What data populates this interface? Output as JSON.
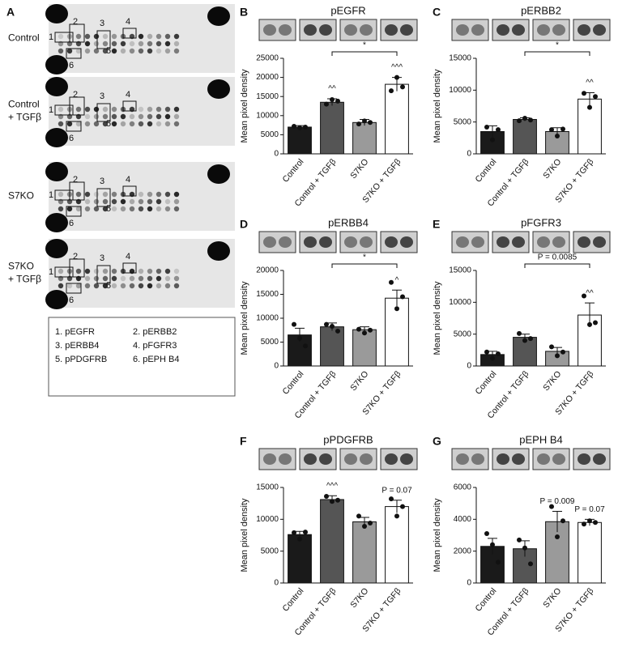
{
  "panel_a": {
    "letter": "A",
    "rows": [
      {
        "label_lines": [
          "Control"
        ]
      },
      {
        "label_lines": [
          "Control",
          "+ TGFβ"
        ]
      },
      {
        "label_lines": [
          "S7KO"
        ]
      },
      {
        "label_lines": [
          "S7KO",
          "+ TGFβ"
        ]
      }
    ],
    "spot_numbers": [
      "1",
      "2",
      "3",
      "4",
      "5",
      "6"
    ],
    "legend": [
      "1. pEGFR",
      "2. pERBB2",
      "3. pERBB4",
      "4. pFGFR3",
      "5. pPDGFRB",
      "6. pEPH B4"
    ]
  },
  "chart_data": [
    {
      "type": "bar",
      "letter": "B",
      "title": "pEGFR",
      "y_label": "Mean pixel density",
      "categories": [
        "Control",
        "Control + TGFβ",
        "S7KO",
        "S7KO + TGFβ"
      ],
      "colors": [
        "#1a1a1a",
        "#555555",
        "#9a9a9a",
        "#ffffff"
      ],
      "values": [
        7000,
        13500,
        8200,
        18200
      ],
      "errors": [
        400,
        900,
        800,
        1800
      ],
      "points": [
        [
          7200,
          6800,
          7000
        ],
        [
          13000,
          14200,
          13800
        ],
        [
          7800,
          8600,
          8200
        ],
        [
          16500,
          20000,
          17500
        ]
      ],
      "bar_labels": [
        null,
        "^^",
        null,
        "^^^"
      ],
      "bracket_label": "*",
      "ylim": [
        0,
        25000
      ],
      "yticks": [
        0,
        5000,
        10000,
        15000,
        20000,
        25000
      ]
    },
    {
      "type": "bar",
      "letter": "C",
      "title": "pERBB2",
      "y_label": "Mean pixel density",
      "categories": [
        "Control",
        "Control + TGFβ",
        "S7KO",
        "S7KO + TGFβ"
      ],
      "colors": [
        "#1a1a1a",
        "#555555",
        "#9a9a9a",
        "#ffffff"
      ],
      "values": [
        3500,
        5400,
        3500,
        8600
      ],
      "errors": [
        900,
        250,
        600,
        1000
      ],
      "points": [
        [
          4200,
          2200,
          3800
        ],
        [
          5200,
          5600,
          5300
        ],
        [
          3800,
          2800,
          3900
        ],
        [
          9500,
          7300,
          9000
        ]
      ],
      "bar_labels": [
        null,
        null,
        null,
        "^^"
      ],
      "bracket_label": "*",
      "ylim": [
        0,
        15000
      ],
      "yticks": [
        0,
        5000,
        10000,
        15000
      ]
    },
    {
      "type": "bar",
      "letter": "D",
      "title": "pERBB4",
      "y_label": "Mean pixel density",
      "categories": [
        "Control",
        "Control + TGFβ",
        "S7KO",
        "S7KO + TGFβ"
      ],
      "colors": [
        "#1a1a1a",
        "#555555",
        "#9a9a9a",
        "#ffffff"
      ],
      "values": [
        6500,
        8200,
        7600,
        14200
      ],
      "errors": [
        1400,
        800,
        600,
        1700
      ],
      "points": [
        [
          8700,
          5800,
          4200
        ],
        [
          8700,
          8300,
          7300
        ],
        [
          7700,
          6900,
          7500
        ],
        [
          17500,
          12000,
          14500
        ]
      ],
      "bar_labels": [
        null,
        null,
        null,
        "^"
      ],
      "bracket_label": "*",
      "ylim": [
        0,
        20000
      ],
      "yticks": [
        0,
        5000,
        10000,
        15000,
        20000
      ]
    },
    {
      "type": "bar",
      "letter": "E",
      "title": "pFGFR3",
      "y_label": "Mean pixel density",
      "categories": [
        "Control",
        "Control + TGFβ",
        "S7KO",
        "S7KO + TGFβ"
      ],
      "colors": [
        "#1a1a1a",
        "#555555",
        "#9a9a9a",
        "#ffffff"
      ],
      "values": [
        1800,
        4500,
        2300,
        8000
      ],
      "errors": [
        500,
        500,
        600,
        1900
      ],
      "points": [
        [
          2200,
          1200,
          1900
        ],
        [
          5100,
          4000,
          4300
        ],
        [
          3000,
          1600,
          2200
        ],
        [
          11000,
          6500,
          6800
        ]
      ],
      "bar_labels": [
        null,
        null,
        null,
        "^^"
      ],
      "bracket_label": "P = 0.0085",
      "ylim": [
        0,
        15000
      ],
      "yticks": [
        0,
        5000,
        10000,
        15000
      ]
    },
    {
      "type": "bar",
      "letter": "F",
      "title": "pPDGFRB",
      "y_label": "Mean pixel density",
      "categories": [
        "Control",
        "Control + TGFβ",
        "S7KO",
        "S7KO + TGFβ"
      ],
      "colors": [
        "#1a1a1a",
        "#555555",
        "#9a9a9a",
        "#ffffff"
      ],
      "values": [
        7600,
        13100,
        9600,
        12000
      ],
      "errors": [
        500,
        600,
        700,
        1000
      ],
      "points": [
        [
          7900,
          6900,
          8000
        ],
        [
          13600,
          12800,
          13000
        ],
        [
          10500,
          8900,
          9400
        ],
        [
          13200,
          10500,
          12000
        ]
      ],
      "bar_labels": [
        null,
        "^^^",
        null,
        "P = 0.07"
      ],
      "ylim": [
        0,
        15000
      ],
      "yticks": [
        0,
        5000,
        10000,
        15000
      ]
    },
    {
      "type": "bar",
      "letter": "G",
      "title": "pEPH B4",
      "y_label": "Mean pixel density",
      "categories": [
        "Control",
        "Control + TGFβ",
        "S7KO",
        "S7KO + TGFβ"
      ],
      "colors": [
        "#1a1a1a",
        "#555555",
        "#9a9a9a",
        "#ffffff"
      ],
      "values": [
        2300,
        2150,
        3850,
        3800
      ],
      "errors": [
        500,
        500,
        650,
        200
      ],
      "points": [
        [
          3100,
          2400,
          1300
        ],
        [
          2700,
          2200,
          1200
        ],
        [
          4800,
          2900,
          3900
        ],
        [
          3700,
          3900,
          3800
        ]
      ],
      "bar_labels": [
        null,
        null,
        "P = 0.009",
        "P = 0.07"
      ],
      "ylim": [
        0,
        6000
      ],
      "yticks": [
        0,
        2000,
        4000,
        6000
      ]
    }
  ]
}
